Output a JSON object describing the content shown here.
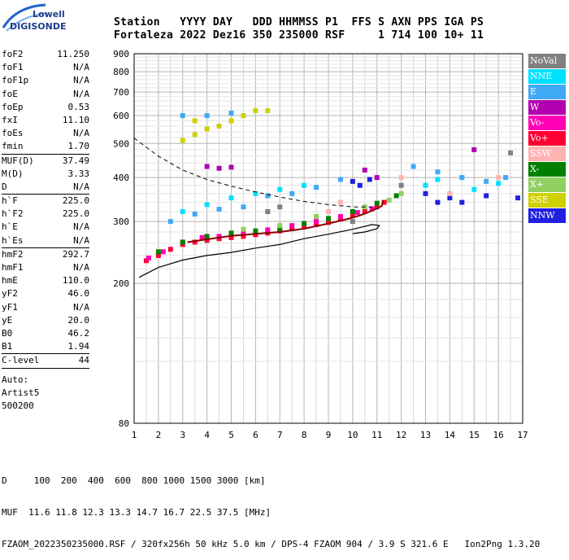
{
  "logo": {
    "brand_top": "Lowell",
    "brand_bottom": "DIGISONDE"
  },
  "header": {
    "line1": "Station   YYYY DAY   DDD HHMMSS P1  FFS S AXN PPS IGA PS",
    "line2": "Fortaleza 2022 Dez16 350 235000 RSF     1 714 100 10+ 11"
  },
  "parameters": [
    [
      {
        "name": "foF2",
        "value": "11.250"
      },
      {
        "name": "foF1",
        "value": "N/A"
      },
      {
        "name": "foF1p",
        "value": "N/A"
      },
      {
        "name": "foE",
        "value": "N/A"
      },
      {
        "name": "foEp",
        "value": "0.53"
      },
      {
        "name": "fxI",
        "value": "11.10"
      },
      {
        "name": "foEs",
        "value": "N/A"
      },
      {
        "name": "fmin",
        "value": "1.70"
      }
    ],
    [
      {
        "name": "MUF(D)",
        "value": "37.49"
      },
      {
        "name": "M(D)",
        "value": "3.33"
      },
      {
        "name": "D",
        "value": "N/A"
      }
    ],
    [
      {
        "name": "h`F",
        "value": "225.0"
      },
      {
        "name": "h`F2",
        "value": "225.0"
      },
      {
        "name": "h`E",
        "value": "N/A"
      },
      {
        "name": "h`Es",
        "value": "N/A"
      }
    ],
    [
      {
        "name": "hmF2",
        "value": "292.7"
      },
      {
        "name": "hmF1",
        "value": "N/A"
      },
      {
        "name": "hmE",
        "value": "110.0"
      },
      {
        "name": "yF2",
        "value": "46.0"
      },
      {
        "name": "yF1",
        "value": "N/A"
      },
      {
        "name": "yE",
        "value": "20.0"
      },
      {
        "name": "B0",
        "value": "46.2"
      },
      {
        "name": "B1",
        "value": "1.94"
      }
    ],
    [
      {
        "name": "C-level",
        "value": "44"
      }
    ]
  ],
  "auto": {
    "line1": "Auto:",
    "line2": "Artist5",
    "line3": "500200"
  },
  "footer": {
    "line1": "D     100  200  400  600  800 1000 1500 3000 [km]",
    "line2": "MUF  11.6 11.8 12.3 13.3 14.7 16.7 22.5 37.5 [MHz]",
    "line3": "FZAOM_2022350235000.RSF / 320fx256h 50 kHz 5.0 km / DPS-4 FZAOM 904 / 3.9 S 321.6 E   Ion2Png 1.3.20"
  },
  "legend": [
    {
      "label": "NoVal",
      "color": "#808080"
    },
    {
      "label": "NNE",
      "color": "#00e0ff"
    },
    {
      "label": "E",
      "color": "#3fa9f5"
    },
    {
      "label": "W",
      "color": "#b000b0"
    },
    {
      "label": "Vo-",
      "color": "#ff00b4"
    },
    {
      "label": "Vo+",
      "color": "#ff0033"
    },
    {
      "label": "SSW",
      "color": "#ffb3b3"
    },
    {
      "label": "X-",
      "color": "#008000"
    },
    {
      "label": "X+",
      "color": "#90d060"
    },
    {
      "label": "SSE",
      "color": "#d0d000"
    },
    {
      "label": "NNW",
      "color": "#2020e0"
    }
  ],
  "chart_data": {
    "type": "scatter",
    "x_ticks": [
      "1",
      "2",
      "3",
      "4",
      "5",
      "6",
      "7",
      "8",
      "9",
      "10",
      "11",
      "12",
      "13",
      "14",
      "15",
      "16",
      "17"
    ],
    "y_ticks": [
      "200",
      "300",
      "400",
      "500",
      "600",
      "700",
      "800",
      "900"
    ],
    "xlim": [
      1,
      17
    ],
    "y_axis_bottom_label": "80",
    "grid": true,
    "log_y": true,
    "series": [
      {
        "name": "Vo+",
        "color": "#ff0033",
        "points": [
          [
            1.5,
            232
          ],
          [
            2,
            240
          ],
          [
            2.5,
            250
          ],
          [
            3,
            258
          ],
          [
            3.5,
            262
          ],
          [
            4,
            265
          ],
          [
            4.5,
            268
          ],
          [
            5,
            270
          ],
          [
            5.5,
            272
          ],
          [
            6,
            275
          ],
          [
            6.5,
            278
          ],
          [
            7,
            282
          ],
          [
            7.5,
            286
          ],
          [
            8,
            290
          ],
          [
            8.5,
            294
          ],
          [
            9,
            298
          ],
          [
            9.5,
            305
          ],
          [
            10,
            312
          ],
          [
            10.5,
            320
          ],
          [
            11,
            330
          ],
          [
            11.3,
            340
          ]
        ]
      },
      {
        "name": "Vo-",
        "color": "#ff00b4",
        "points": [
          [
            1.6,
            236
          ],
          [
            2.2,
            246
          ],
          [
            3,
            262
          ],
          [
            3.8,
            270
          ],
          [
            4.5,
            272
          ],
          [
            5.5,
            278
          ],
          [
            6.5,
            284
          ],
          [
            7.5,
            292
          ],
          [
            8.5,
            300
          ],
          [
            9.5,
            310
          ],
          [
            10.2,
            318
          ],
          [
            10.8,
            326
          ]
        ]
      },
      {
        "name": "X-",
        "color": "#008000",
        "points": [
          [
            2,
            246
          ],
          [
            3,
            262
          ],
          [
            4,
            272
          ],
          [
            5,
            278
          ],
          [
            6,
            282
          ],
          [
            7,
            286
          ],
          [
            8,
            296
          ],
          [
            9,
            306
          ],
          [
            10,
            320
          ],
          [
            11,
            338
          ],
          [
            11.8,
            355
          ]
        ]
      },
      {
        "name": "X+",
        "color": "#90d060",
        "points": [
          [
            5.5,
            285
          ],
          [
            7,
            292
          ],
          [
            8.5,
            310
          ],
          [
            10.5,
            330
          ],
          [
            11.5,
            345
          ],
          [
            12,
            360
          ]
        ]
      },
      {
        "name": "E",
        "color": "#3fa9f5",
        "points": [
          [
            2.5,
            300
          ],
          [
            3.5,
            315
          ],
          [
            4.5,
            325
          ],
          [
            5.5,
            330
          ],
          [
            6.5,
            355
          ],
          [
            7.5,
            360
          ],
          [
            8.5,
            375
          ],
          [
            9.5,
            395
          ],
          [
            12.5,
            430
          ],
          [
            13.5,
            415
          ],
          [
            14.5,
            400
          ],
          [
            15.5,
            390
          ],
          [
            16.3,
            400
          ],
          [
            3,
            600
          ],
          [
            4,
            600
          ],
          [
            5,
            610
          ]
        ]
      },
      {
        "name": "NNE",
        "color": "#00e0ff",
        "points": [
          [
            3,
            320
          ],
          [
            4,
            335
          ],
          [
            5,
            350
          ],
          [
            6,
            360
          ],
          [
            7,
            370
          ],
          [
            8,
            380
          ],
          [
            13,
            380
          ],
          [
            13.5,
            395
          ],
          [
            14,
            360
          ],
          [
            15,
            370
          ],
          [
            16,
            385
          ]
        ]
      },
      {
        "name": "W",
        "color": "#b000b0",
        "points": [
          [
            4,
            430
          ],
          [
            4.5,
            425
          ],
          [
            5,
            428
          ],
          [
            10.5,
            420
          ],
          [
            11,
            400
          ],
          [
            15,
            480
          ]
        ]
      },
      {
        "name": "SSE",
        "color": "#d0d000",
        "points": [
          [
            3,
            510
          ],
          [
            3.5,
            530
          ],
          [
            4,
            550
          ],
          [
            4.5,
            560
          ],
          [
            5,
            580
          ],
          [
            5.5,
            600
          ],
          [
            6,
            620
          ],
          [
            6.5,
            620
          ],
          [
            3.5,
            580
          ]
        ]
      },
      {
        "name": "NNW",
        "color": "#2020e0",
        "points": [
          [
            10,
            390
          ],
          [
            10.3,
            380
          ],
          [
            10.7,
            395
          ],
          [
            13,
            360
          ],
          [
            13.5,
            340
          ],
          [
            14,
            350
          ],
          [
            14.5,
            340
          ],
          [
            15.5,
            355
          ],
          [
            16.8,
            350
          ]
        ]
      },
      {
        "name": "SSW",
        "color": "#ffb3b3",
        "points": [
          [
            9,
            320
          ],
          [
            9.5,
            340
          ],
          [
            12,
            400
          ],
          [
            14,
            360
          ],
          [
            16,
            400
          ]
        ]
      },
      {
        "name": "NoVal",
        "color": "#808080",
        "points": [
          [
            6.5,
            320
          ],
          [
            7,
            330
          ],
          [
            10,
            300
          ],
          [
            12,
            380
          ],
          [
            16.5,
            470
          ]
        ]
      }
    ],
    "curves": {
      "trace": [
        [
          1.2,
          208
        ],
        [
          2,
          222
        ],
        [
          3,
          233
        ],
        [
          4,
          240
        ],
        [
          5,
          245
        ],
        [
          6,
          252
        ],
        [
          7,
          258
        ],
        [
          8,
          268
        ],
        [
          9,
          276
        ],
        [
          10,
          285
        ],
        [
          10.8,
          294
        ],
        [
          11.1,
          292
        ],
        [
          11,
          286
        ],
        [
          10.5,
          280
        ],
        [
          10,
          277
        ]
      ],
      "dashed": [
        [
          1,
          518
        ],
        [
          2,
          460
        ],
        [
          3,
          420
        ],
        [
          4,
          395
        ],
        [
          5,
          378
        ],
        [
          6,
          364
        ],
        [
          7,
          352
        ],
        [
          8,
          342
        ],
        [
          9,
          335
        ],
        [
          10,
          330
        ],
        [
          10.8,
          330
        ]
      ],
      "profile": [
        [
          3.2,
          262
        ],
        [
          5,
          273
        ],
        [
          7,
          280
        ],
        [
          8,
          286
        ],
        [
          9,
          296
        ],
        [
          9.8,
          305
        ],
        [
          10.3,
          312
        ],
        [
          10.8,
          322
        ],
        [
          11.2,
          332
        ],
        [
          11.25,
          345
        ]
      ]
    }
  }
}
